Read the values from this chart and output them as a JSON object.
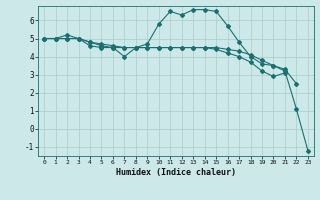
{
  "bg_color": "#cce8e8",
  "line_color": "#1a7070",
  "grid_color": "#aacccc",
  "xlabel": "Humidex (Indice chaleur)",
  "xlim": [
    -0.5,
    23.5
  ],
  "ylim": [
    -1.5,
    6.8
  ],
  "yticks": [
    -1,
    0,
    1,
    2,
    3,
    4,
    5,
    6
  ],
  "xticks": [
    0,
    1,
    2,
    3,
    4,
    5,
    6,
    7,
    8,
    9,
    10,
    11,
    12,
    13,
    14,
    15,
    16,
    17,
    18,
    19,
    20,
    21,
    22,
    23
  ],
  "line1_x": [
    0,
    1,
    2,
    3,
    4,
    5,
    6,
    7,
    8,
    9,
    10,
    11,
    12,
    13,
    14,
    15,
    16,
    17,
    18,
    19,
    20,
    21,
    22,
    23
  ],
  "line1_y": [
    5.0,
    5.0,
    5.2,
    5.0,
    4.6,
    4.5,
    4.5,
    4.0,
    4.5,
    4.7,
    5.8,
    6.5,
    6.3,
    6.6,
    6.6,
    6.5,
    5.7,
    4.8,
    4.0,
    3.6,
    3.5,
    3.2,
    1.1,
    -1.2
  ],
  "line2_x": [
    0,
    1,
    2,
    3,
    4,
    5,
    6,
    7,
    8,
    9,
    10,
    11,
    12,
    13,
    14,
    15,
    16,
    17,
    18,
    19,
    20,
    21,
    22
  ],
  "line2_y": [
    5.0,
    5.0,
    5.0,
    5.0,
    4.8,
    4.7,
    4.6,
    4.5,
    4.5,
    4.5,
    4.5,
    4.5,
    4.5,
    4.5,
    4.5,
    4.5,
    4.4,
    4.3,
    4.1,
    3.8,
    3.5,
    3.3,
    2.5
  ],
  "line3_x": [
    0,
    1,
    2,
    3,
    4,
    5,
    6,
    7,
    8,
    9,
    10,
    11,
    12,
    13,
    14,
    15,
    16,
    17,
    18,
    19,
    20,
    21
  ],
  "line3_y": [
    5.0,
    5.0,
    5.0,
    5.0,
    4.8,
    4.6,
    4.5,
    4.5,
    4.5,
    4.5,
    4.5,
    4.5,
    4.5,
    4.5,
    4.5,
    4.4,
    4.2,
    4.0,
    3.7,
    3.2,
    2.9,
    3.1
  ]
}
